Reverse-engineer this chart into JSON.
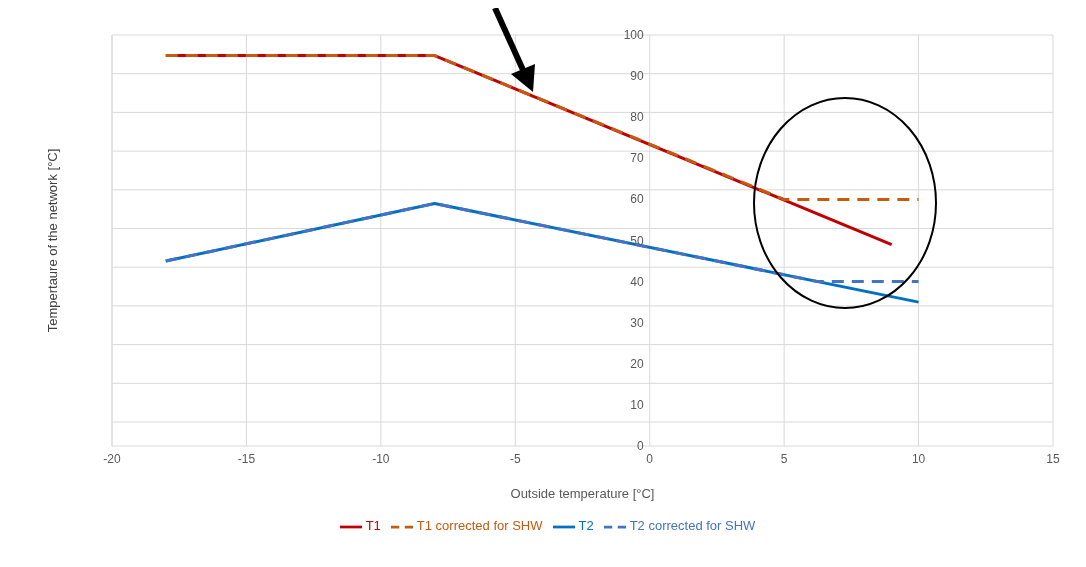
{
  "chart_data": {
    "type": "line",
    "xlabel": "Outside temperature [°C]",
    "ylabel": "Tempertaure of the network [°C]",
    "xlim": [
      -20,
      15
    ],
    "xticks": [
      -20,
      -15,
      -10,
      -5,
      0,
      5,
      10,
      15
    ],
    "ylim": [
      0,
      100
    ],
    "yticks": [
      0,
      10,
      20,
      30,
      40,
      50,
      60,
      70,
      80,
      90,
      100
    ],
    "grid": true,
    "legend": "bottom",
    "marker": "none",
    "series": [
      {
        "name": "T1",
        "color": "#c00000",
        "x": [
          -18,
          -8,
          9
        ],
        "values": [
          95,
          95,
          49
        ],
        "line_style": "solid"
      },
      {
        "name": "T2",
        "color": "#0070c0",
        "x": [
          -18,
          -8,
          10
        ],
        "values": [
          45,
          59,
          35
        ],
        "line_style": "solid"
      },
      {
        "name": "T1 corrected for SHW",
        "color": "#c55a11",
        "x": [
          -18,
          -8,
          5,
          10
        ],
        "values": [
          95,
          95,
          60,
          60
        ],
        "line_style": "dashed"
      },
      {
        "name": "T2 corrected for SHW",
        "color": "#4472c4",
        "x": [
          -18,
          -8,
          6.25,
          10
        ],
        "values": [
          45,
          59,
          40,
          40
        ],
        "line_style": "dashed"
      }
    ]
  }
}
